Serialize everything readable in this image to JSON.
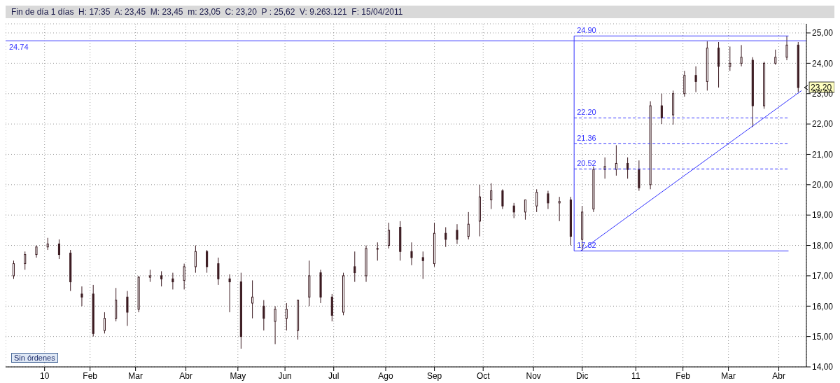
{
  "chart_data": {
    "type": "candlestick",
    "title": "Fin de día 1 días  H: 17:35  A: 23,45  M: 23,45  m: 23,05  C: 23,20  P : 25,62  V: 9.263.121  F: 15/04/2011",
    "color": "#3b1a20",
    "x": [
      "2009-12-16",
      "2009-12-23",
      "2009-12-30",
      "2010-01-06",
      "2010-01-13",
      "2010-01-20",
      "2010-01-27",
      "2010-02-03",
      "2010-02-10",
      "2010-02-17",
      "2010-02-24",
      "2010-03-03",
      "2010-03-10",
      "2010-03-17",
      "2010-03-24",
      "2010-03-31",
      "2010-04-07",
      "2010-04-14",
      "2010-04-21",
      "2010-04-28",
      "2010-05-05",
      "2010-05-12",
      "2010-05-19",
      "2010-05-26",
      "2010-06-02",
      "2010-06-09",
      "2010-06-16",
      "2010-06-23",
      "2010-06-30",
      "2010-07-07",
      "2010-07-14",
      "2010-07-21",
      "2010-07-28",
      "2010-08-04",
      "2010-08-11",
      "2010-08-18",
      "2010-08-25",
      "2010-09-01",
      "2010-09-08",
      "2010-09-15",
      "2010-09-22",
      "2010-09-29",
      "2010-10-06",
      "2010-10-13",
      "2010-10-20",
      "2010-10-27",
      "2010-11-03",
      "2010-11-10",
      "2010-11-17",
      "2010-11-24",
      "2010-12-01",
      "2010-12-08",
      "2010-12-15",
      "2010-12-22",
      "2010-12-29",
      "2011-01-05",
      "2011-01-12",
      "2011-01-19",
      "2011-01-26",
      "2011-02-02",
      "2011-02-09",
      "2011-02-16",
      "2011-02-23",
      "2011-03-02",
      "2011-03-09",
      "2011-03-16",
      "2011-03-23",
      "2011-03-30",
      "2011-04-06",
      "2011-04-13"
    ],
    "ohlc": [
      [
        17.0,
        17.5,
        16.9,
        17.4
      ],
      [
        17.4,
        17.8,
        17.2,
        17.7
      ],
      [
        17.7,
        18.0,
        17.6,
        17.95
      ],
      [
        17.95,
        18.25,
        17.85,
        18.05
      ],
      [
        18.05,
        18.2,
        17.55,
        17.7
      ],
      [
        17.75,
        17.85,
        16.5,
        16.8
      ],
      [
        16.4,
        16.65,
        16.0,
        16.3
      ],
      [
        16.4,
        16.7,
        15.0,
        15.1
      ],
      [
        15.2,
        15.8,
        15.1,
        15.6
      ],
      [
        15.6,
        16.6,
        15.5,
        16.2
      ],
      [
        16.3,
        16.5,
        15.35,
        15.8
      ],
      [
        15.9,
        17.0,
        15.8,
        16.95
      ],
      [
        16.95,
        17.2,
        16.8,
        17.0
      ],
      [
        17.0,
        17.15,
        16.65,
        16.9
      ],
      [
        16.9,
        17.1,
        16.55,
        16.8
      ],
      [
        16.85,
        17.4,
        16.55,
        17.3
      ],
      [
        17.3,
        18.0,
        17.1,
        17.8
      ],
      [
        17.8,
        17.85,
        17.1,
        17.3
      ],
      [
        17.4,
        17.6,
        16.7,
        16.9
      ],
      [
        16.9,
        17.05,
        15.8,
        16.8
      ],
      [
        16.8,
        17.1,
        14.6,
        15.0
      ],
      [
        16.1,
        16.85,
        15.6,
        16.3
      ],
      [
        16.0,
        16.2,
        15.2,
        15.6
      ],
      [
        15.5,
        16.0,
        14.75,
        15.9
      ],
      [
        15.6,
        16.1,
        15.2,
        15.9
      ],
      [
        15.2,
        16.2,
        14.9,
        16.2
      ],
      [
        16.3,
        17.5,
        16.0,
        17.0
      ],
      [
        17.1,
        17.2,
        16.1,
        16.3
      ],
      [
        16.3,
        16.4,
        15.5,
        15.7
      ],
      [
        15.8,
        17.1,
        15.7,
        17.0
      ],
      [
        17.3,
        17.8,
        16.8,
        17.1
      ],
      [
        17.0,
        18.0,
        16.8,
        17.9
      ],
      [
        17.9,
        18.1,
        17.5,
        17.9
      ],
      [
        18.0,
        18.75,
        17.9,
        18.5
      ],
      [
        18.6,
        18.8,
        17.5,
        17.8
      ],
      [
        17.8,
        18.1,
        17.35,
        17.6
      ],
      [
        17.6,
        17.8,
        16.9,
        17.5
      ],
      [
        17.4,
        18.75,
        17.3,
        18.4
      ],
      [
        18.4,
        18.6,
        17.95,
        18.2
      ],
      [
        18.5,
        18.7,
        18.05,
        18.2
      ],
      [
        18.3,
        19.1,
        18.2,
        18.7
      ],
      [
        18.8,
        20.0,
        18.3,
        19.6
      ],
      [
        19.5,
        20.05,
        19.2,
        19.8
      ],
      [
        19.8,
        19.85,
        19.2,
        19.3
      ],
      [
        19.3,
        19.4,
        18.9,
        19.1
      ],
      [
        19.1,
        19.5,
        18.85,
        19.5
      ],
      [
        19.3,
        19.85,
        19.1,
        19.75
      ],
      [
        19.7,
        19.8,
        19.2,
        19.4
      ],
      [
        19.4,
        19.6,
        18.8,
        19.45
      ],
      [
        19.5,
        19.6,
        18.0,
        18.3
      ],
      [
        18.2,
        19.3,
        17.82,
        19.1
      ],
      [
        19.2,
        20.6,
        19.1,
        20.5
      ],
      [
        20.5,
        20.9,
        20.2,
        20.6
      ],
      [
        20.5,
        21.3,
        20.3,
        20.7
      ],
      [
        20.7,
        20.9,
        20.2,
        20.5
      ],
      [
        20.5,
        20.8,
        19.8,
        19.9
      ],
      [
        20.0,
        22.75,
        19.85,
        22.6
      ],
      [
        22.6,
        23.0,
        22.0,
        22.2
      ],
      [
        22.3,
        23.1,
        21.98,
        23.0
      ],
      [
        23.0,
        23.75,
        22.9,
        23.6
      ],
      [
        23.6,
        23.9,
        23.05,
        23.4
      ],
      [
        23.4,
        24.72,
        23.1,
        24.5
      ],
      [
        24.5,
        24.7,
        23.2,
        23.9
      ],
      [
        23.9,
        24.55,
        23.75,
        24.0
      ],
      [
        24.0,
        24.6,
        23.9,
        24.2
      ],
      [
        24.1,
        24.2,
        21.9,
        22.6
      ],
      [
        22.6,
        24.05,
        22.5,
        24.0
      ],
      [
        24.0,
        24.45,
        23.95,
        24.2
      ],
      [
        24.2,
        24.9,
        24.1,
        24.6
      ],
      [
        24.6,
        24.7,
        23.05,
        23.2
      ]
    ],
    "series": [
      {
        "type": "line",
        "color": "#3333ff",
        "x": [
          "2011-04-07",
          "2010-11-26",
          "2010-11-26",
          "2011-04-07"
        ],
        "values": [
          24.9,
          24.9,
          17.82,
          17.82
        ],
        "value_labels": [
          null,
          "24.90",
          "17.82",
          null
        ],
        "line_style": "solid"
      },
      {
        "type": "line",
        "color": "#3333ff",
        "x": [
          "2010-11-26",
          "2011-04-07"
        ],
        "values": [
          22.2,
          22.2
        ],
        "value_labels": [
          "22.20",
          null
        ],
        "line_style": "dashed"
      },
      {
        "type": "line",
        "color": "#3333ff",
        "x": [
          "2010-11-26",
          "2011-04-07"
        ],
        "values": [
          21.36,
          21.36
        ],
        "value_labels": [
          "21.36",
          null
        ],
        "line_style": "dashed"
      },
      {
        "type": "line",
        "color": "#3333ff",
        "x": [
          "2010-11-26",
          "2011-04-07"
        ],
        "values": [
          20.52,
          20.52
        ],
        "value_labels": [
          "20.52",
          null
        ],
        "line_style": "dashed"
      },
      {
        "type": "line",
        "color": "#3333ff",
        "x": [
          "2010-11-30",
          "2011-04-15"
        ],
        "values": [
          17.82,
          23.1
        ],
        "line_style": "solid"
      }
    ],
    "ref_lines": [
      {
        "axis": "y",
        "value": 24.74,
        "label": "24.74",
        "color": "#3333ff"
      }
    ],
    "annotations": [
      {
        "text": "23,20",
        "x": "2011-04-15",
        "y": 23.2
      },
      "Sin órdenes"
    ],
    "xlim": [
      "2009-12-11",
      "2011-04-18"
    ],
    "xticks": [
      {
        "value": "2010-01-04",
        "label": "10"
      },
      {
        "value": "2010-02-01",
        "label": "Feb"
      },
      {
        "value": "2010-03-01",
        "label": "Mar"
      },
      {
        "value": "2010-04-01",
        "label": "Abr"
      },
      {
        "value": "2010-05-03",
        "label": "May"
      },
      {
        "value": "2010-06-01",
        "label": "Jun"
      },
      {
        "value": "2010-07-01",
        "label": "Jul"
      },
      {
        "value": "2010-08-02",
        "label": "Ago"
      },
      {
        "value": "2010-09-01",
        "label": "Sep"
      },
      {
        "value": "2010-10-01",
        "label": "Oct"
      },
      {
        "value": "2010-11-01",
        "label": "Nov"
      },
      {
        "value": "2010-12-01",
        "label": "Dic"
      },
      {
        "value": "2011-01-03",
        "label": "11"
      },
      {
        "value": "2011-02-01",
        "label": "Feb"
      },
      {
        "value": "2011-03-01",
        "label": "Mar"
      },
      {
        "value": "2011-04-01",
        "label": "Abr"
      }
    ],
    "ylim": [
      14,
      25.3
    ],
    "yticks": [
      {
        "value": 14,
        "label": "14,00"
      },
      {
        "value": 15,
        "label": "15,00"
      },
      {
        "value": 16,
        "label": "16,00"
      },
      {
        "value": 17,
        "label": "17,00"
      },
      {
        "value": 18,
        "label": "18,00"
      },
      {
        "value": 19,
        "label": "19,00"
      },
      {
        "value": 20,
        "label": "20,00"
      },
      {
        "value": 21,
        "label": "21,00"
      },
      {
        "value": 22,
        "label": "22,00"
      },
      {
        "value": 23,
        "label": "23,00"
      },
      {
        "value": 24,
        "label": "24,00"
      },
      {
        "value": 25,
        "label": "25,00"
      }
    ],
    "grid": true
  }
}
